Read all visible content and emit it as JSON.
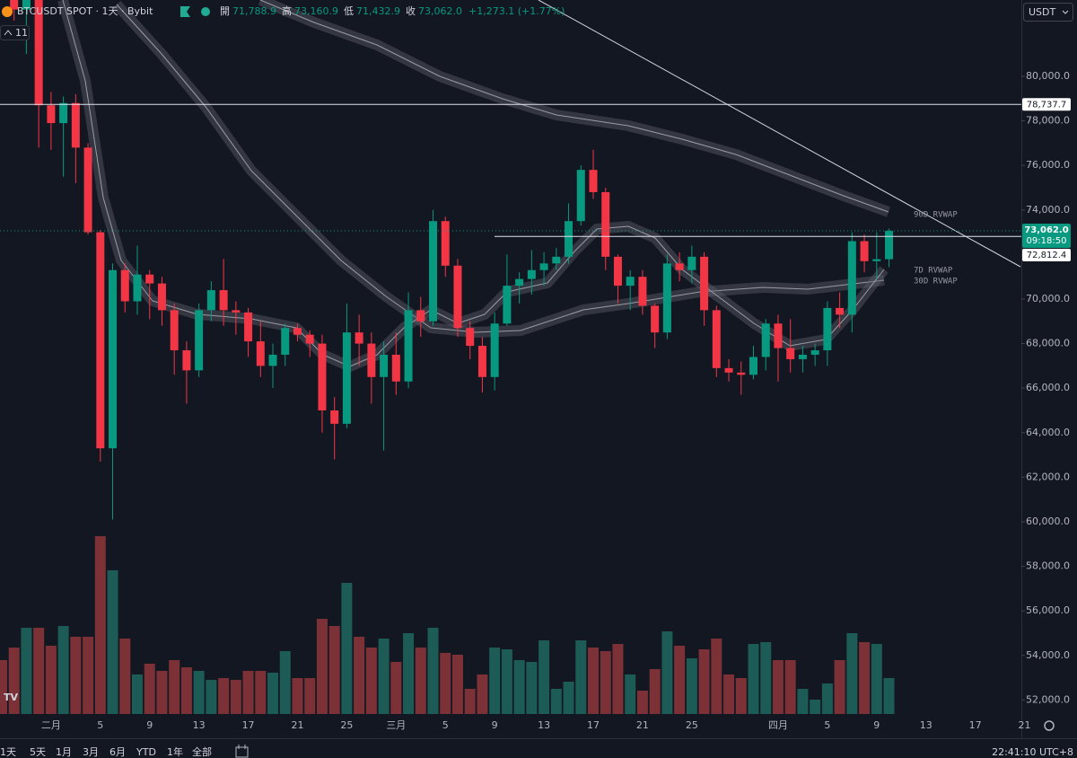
{
  "chart_data": {
    "type": "candlestick",
    "header": {
      "symbol": "BTCUSDT SPOT · 1天 · Bybit",
      "open_label": "開",
      "open": "71,788.9",
      "high_label": "高",
      "high": "73,160.9",
      "low_label": "低",
      "low": "71,432.9",
      "close_label": "收",
      "close": "73,062.0",
      "change": "+1,273.1 (+1.77%)"
    },
    "currency": "USDT",
    "interval_count": "11",
    "categories": [
      null,
      null,
      null,
      null,
      "二月",
      null,
      null,
      null,
      "5",
      null,
      null,
      null,
      "9",
      null,
      null,
      null,
      "13",
      null,
      null,
      null,
      "17",
      null,
      null,
      null,
      "21",
      null,
      null,
      null,
      "25",
      null,
      null,
      null,
      "三月",
      null,
      null,
      null,
      "5",
      null,
      null,
      null,
      "9",
      null,
      null,
      null,
      "13",
      null,
      null,
      null,
      "17",
      null,
      null,
      null,
      "21",
      null,
      null,
      null,
      "25",
      null,
      null,
      null,
      null,
      null,
      null,
      "四月",
      null,
      null,
      null,
      "5",
      null,
      null,
      null,
      "9",
      null,
      null,
      null,
      "13",
      null,
      null,
      null,
      "17",
      null,
      null,
      null,
      "21"
    ],
    "open": [
      89200,
      88000,
      83000,
      84000,
      78700,
      77900,
      78800,
      76800,
      73000,
      63300,
      71300,
      69900,
      71100,
      70700,
      69500,
      67700,
      66800,
      69500,
      70400,
      69500,
      69400,
      68100,
      67000,
      67500,
      68700,
      68400,
      68000,
      65000,
      64400,
      68500,
      68000,
      66500,
      67500,
      66300,
      69500,
      69000,
      73500,
      71500,
      68700,
      67900,
      66500,
      68900,
      70600,
      70900,
      71300,
      71600,
      71900,
      73500,
      75800,
      74800,
      71900,
      70600,
      71000,
      69700,
      68500,
      71600,
      71300,
      71900,
      69500,
      66900,
      66700,
      66600,
      67400,
      68900,
      67800,
      67300,
      67500,
      67700,
      69600,
      69300,
      72600,
      71700,
      71788.9,
      null,
      null,
      null,
      null,
      null,
      null,
      null,
      null,
      null,
      null,
      null
    ],
    "high": [
      89500,
      88500,
      84100,
      84200,
      79300,
      79100,
      79200,
      77000,
      73100,
      71600,
      71600,
      72400,
      71300,
      71000,
      69800,
      68100,
      69800,
      70800,
      71800,
      69900,
      69600,
      69000,
      68000,
      68900,
      68900,
      68600,
      68400,
      65600,
      69800,
      69300,
      68500,
      68100,
      68500,
      70300,
      70100,
      74000,
      73700,
      71800,
      69000,
      68300,
      69400,
      72000,
      71200,
      72200,
      72100,
      72300,
      74300,
      76000,
      76700,
      75000,
      72000,
      71300,
      71300,
      69800,
      72000,
      72100,
      72400,
      72100,
      69700,
      67300,
      67200,
      67900,
      69100,
      69300,
      69100,
      67900,
      68000,
      69900,
      70300,
      73000,
      72900,
      73000,
      73160.9,
      null,
      null,
      null,
      null,
      null,
      null,
      null,
      null,
      null,
      null,
      null
    ],
    "low": [
      87800,
      82500,
      81000,
      76800,
      76700,
      75500,
      75200,
      72900,
      62700,
      60100,
      69400,
      69300,
      69100,
      68800,
      66600,
      65300,
      66500,
      69000,
      68800,
      68400,
      67400,
      66500,
      66000,
      67000,
      68100,
      67400,
      64000,
      62800,
      64200,
      67000,
      65300,
      63200,
      65700,
      66000,
      68300,
      68800,
      71000,
      68300,
      67300,
      65800,
      65900,
      68800,
      69800,
      70200,
      70600,
      71300,
      71600,
      73300,
      74500,
      71300,
      69800,
      69500,
      69300,
      67800,
      68200,
      70800,
      70700,
      68800,
      66500,
      66300,
      65700,
      66400,
      66800,
      66300,
      66700,
      66700,
      67000,
      67000,
      68700,
      68500,
      71200,
      70900,
      71432.9,
      null,
      null,
      null,
      null,
      null,
      null,
      null,
      null,
      null,
      null,
      null
    ],
    "close": [
      88000,
      83000,
      84000,
      78700,
      77900,
      78800,
      76800,
      73000,
      63300,
      71300,
      69900,
      71100,
      70700,
      69500,
      67700,
      66800,
      69500,
      70400,
      69500,
      69400,
      68100,
      67000,
      67500,
      68700,
      68400,
      68000,
      65000,
      64400,
      68500,
      68000,
      66500,
      67500,
      66300,
      69500,
      69000,
      73500,
      71500,
      68700,
      67900,
      66500,
      68900,
      70600,
      70900,
      71300,
      71600,
      71900,
      73500,
      75800,
      74800,
      71900,
      70600,
      71000,
      69700,
      68500,
      71600,
      71300,
      71900,
      69500,
      66900,
      66700,
      66600,
      67400,
      68900,
      67800,
      67300,
      67500,
      67700,
      69600,
      69300,
      72600,
      71700,
      71788.9,
      73062.0,
      null,
      null,
      null,
      null,
      null,
      null,
      null,
      null,
      null,
      null,
      null
    ],
    "volume": [
      30,
      37,
      48,
      48,
      38,
      49,
      43,
      43,
      99,
      80,
      42,
      22,
      28,
      24,
      30,
      26,
      24,
      19,
      20,
      19,
      24,
      24,
      23,
      35,
      20,
      20,
      53,
      49,
      73,
      43,
      37,
      42,
      29,
      45,
      37,
      48,
      34,
      33,
      14,
      22,
      37,
      36,
      30,
      29,
      41,
      14,
      18,
      41,
      37,
      35,
      39,
      22,
      13,
      25,
      46,
      38,
      31,
      36,
      42,
      22,
      20,
      39,
      40,
      30,
      30,
      14,
      8,
      17,
      30,
      45,
      40,
      39,
      20,
      null,
      null,
      null,
      null,
      null,
      null,
      null,
      null,
      null,
      null,
      null
    ],
    "vlim": [
      0,
      100
    ],
    "ylim": [
      50282,
      83427
    ],
    "yticks": [
      {
        "value": 52000,
        "label": "52,000.0"
      },
      {
        "value": 54000,
        "label": "54,000.0"
      },
      {
        "value": 56000,
        "label": "56,000.0"
      },
      {
        "value": 58000,
        "label": "58,000.0"
      },
      {
        "value": 60000,
        "label": "60,000.0"
      },
      {
        "value": 62000,
        "label": "62,000.0"
      },
      {
        "value": 64000,
        "label": "64,000.0"
      },
      {
        "value": 66000,
        "label": "66,000.0"
      },
      {
        "value": 68000,
        "label": "68,000.0"
      },
      {
        "value": 70000,
        "label": "70,000.0"
      },
      {
        "value": 72000,
        "label": "72,000.0"
      },
      {
        "value": 74000,
        "label": "74,000.0"
      },
      {
        "value": 76000,
        "label": "76,000.0"
      },
      {
        "value": 78000,
        "label": "78,000.0"
      },
      {
        "value": 80000,
        "label": "80,000.0"
      }
    ],
    "price_lines": [
      {
        "value": 78737.7,
        "label": "78,737.7"
      },
      {
        "value": 72812.4,
        "label": "72,812.4"
      }
    ],
    "last_price_label": "73,062.0",
    "countdown": "09:18:50",
    "indicator_labels": [
      "90D RVWAP",
      "7D RVWAP",
      "30D RVWAP"
    ],
    "up_color": "#089981",
    "down_color": "#f23645",
    "volume_up_color": "#1d5b57",
    "volume_down_color": "#7b3136",
    "grid": false,
    "ranges": [
      "1天",
      "5天",
      "1月",
      "3月",
      "6月",
      "YTD",
      "1年",
      "全部"
    ],
    "clock": "22:41:10 UTC+8"
  }
}
